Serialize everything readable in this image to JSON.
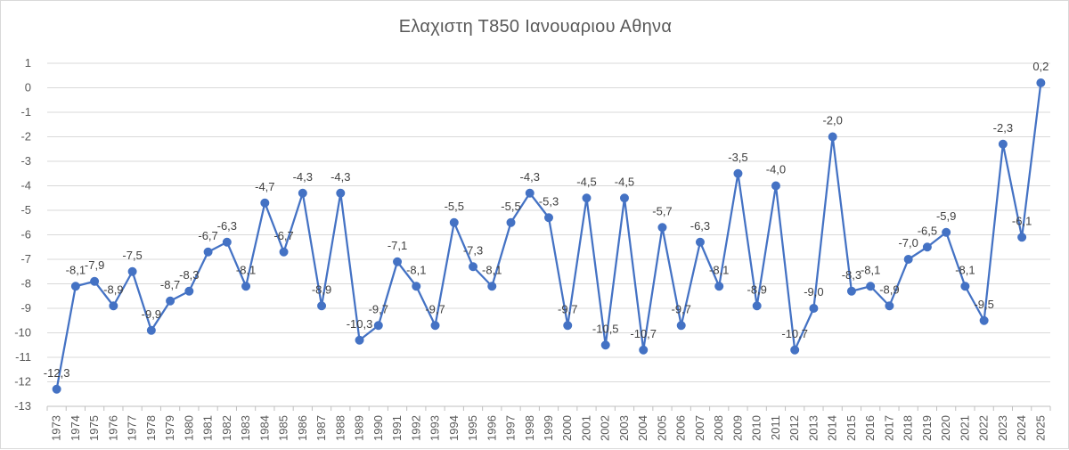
{
  "chart_data": {
    "type": "line",
    "title": "Ελαχιστη Τ850 Ιανουαριου Αθηνα",
    "xlabel": "",
    "ylabel": "",
    "ylim": [
      -13,
      1
    ],
    "yticks": [
      "1",
      "0",
      "-1",
      "-2",
      "-3",
      "-4",
      "-5",
      "-6",
      "-7",
      "-8",
      "-9",
      "-10",
      "-11",
      "-12",
      "-13"
    ],
    "grid": "horizontal",
    "legend": "none",
    "colors": {
      "line": "#4472C4",
      "grid": "#d9d9d9",
      "text": "#595959"
    },
    "categories": [
      "1973",
      "1974",
      "1975",
      "1976",
      "1977",
      "1978",
      "1979",
      "1980",
      "1981",
      "1982",
      "1983",
      "1984",
      "1985",
      "1986",
      "1987",
      "1988",
      "1989",
      "1990",
      "1991",
      "1992",
      "1993",
      "1994",
      "1995",
      "1996",
      "1997",
      "1998",
      "1999",
      "2000",
      "2001",
      "2002",
      "2003",
      "2004",
      "2005",
      "2006",
      "2007",
      "2008",
      "2009",
      "2010",
      "2011",
      "2012",
      "2013",
      "2014",
      "2015",
      "2016",
      "2017",
      "2018",
      "2019",
      "2020",
      "2021",
      "2022",
      "2023",
      "2024",
      "2025"
    ],
    "series": [
      {
        "values": [
          -12.3,
          -8.1,
          -7.9,
          -8.9,
          -7.5,
          -9.9,
          -8.7,
          -8.3,
          -6.7,
          -6.3,
          -8.1,
          -4.7,
          -6.7,
          -4.3,
          -8.9,
          -4.3,
          -10.3,
          -9.7,
          -7.1,
          -8.1,
          -9.7,
          -5.5,
          -7.3,
          -8.1,
          -5.5,
          -4.3,
          -5.3,
          -9.7,
          -4.5,
          -10.5,
          -4.5,
          -10.7,
          -5.7,
          -9.7,
          -6.3,
          -8.1,
          -3.5,
          -8.9,
          -4.0,
          -10.7,
          -9.0,
          -2.0,
          -8.3,
          -8.1,
          -8.9,
          -7.0,
          -6.5,
          -5.9,
          -8.1,
          -9.5,
          -2.3,
          -6.1,
          0.2
        ],
        "labels": [
          "-12,3",
          "-8,1",
          "-7,9",
          "-8,9",
          "-7,5",
          "-9,9",
          "-8,7",
          "-8,3",
          "-6,7",
          "-6,3",
          "-8,1",
          "-4,7",
          "-6,7",
          "-4,3",
          "-8,9",
          "-4,3",
          "-10,3",
          "-9,7",
          "-7,1",
          "-8,1",
          "-9,7",
          "-5,5",
          "-7,3",
          "-8,1",
          "-5,5",
          "-4,3",
          "-5,3",
          "-9,7",
          "-4,5",
          "-10,5",
          "-4,5",
          "-10,7",
          "-5,7",
          "-9,7",
          "-6,3",
          "-8,1",
          "-3,5",
          "-8,9",
          "-4,0",
          "-10,7",
          "-9,0",
          "-2,0",
          "-8,3",
          "-8,1",
          "-8,9",
          "-7,0",
          "-6,5",
          "-5,9",
          "-8,1",
          "-9,5",
          "-2,3",
          "-6,1",
          "0,2"
        ]
      }
    ]
  }
}
